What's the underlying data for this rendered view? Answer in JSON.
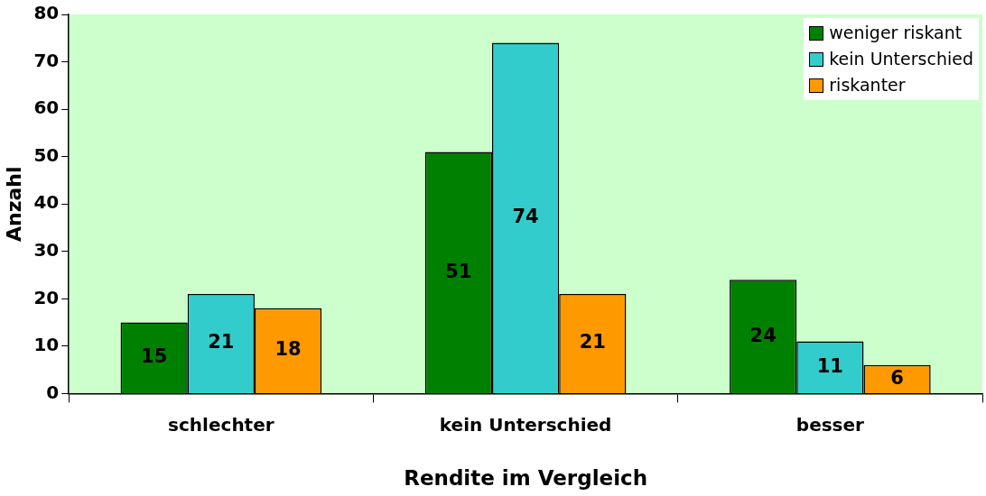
{
  "chart_data": {
    "type": "bar",
    "xlabel": "Rendite im Vergleich",
    "ylabel": "Anzahl",
    "categories": [
      "schlechter",
      "kein Unterschied",
      "besser"
    ],
    "series": [
      {
        "name": "weniger riskant",
        "color": "#008000",
        "values": [
          15,
          51,
          24
        ]
      },
      {
        "name": "kein Unterschied",
        "color": "#33cccc",
        "values": [
          21,
          74,
          11
        ]
      },
      {
        "name": "riskanter",
        "color": "#ff9900",
        "values": [
          18,
          21,
          6
        ]
      }
    ],
    "ylim": [
      0,
      80
    ],
    "yticks": [
      0,
      10,
      20,
      30,
      40,
      50,
      60,
      70,
      80
    ],
    "grid": false,
    "legend": "top right",
    "data_labels": true
  }
}
